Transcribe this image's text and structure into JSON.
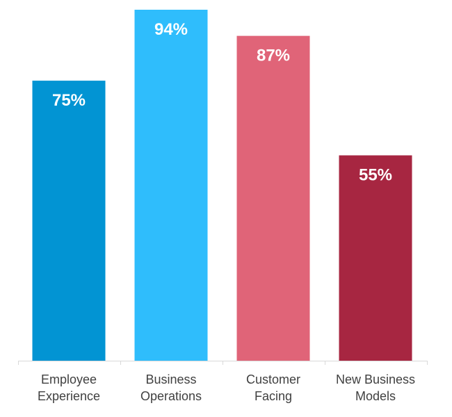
{
  "chart_data": {
    "type": "bar",
    "categories": [
      [
        "Employee",
        "Experience"
      ],
      [
        "Business",
        "Operations"
      ],
      [
        "Customer",
        "Facing"
      ],
      [
        "New Business",
        "Models"
      ]
    ],
    "values": [
      75,
      94,
      87,
      55
    ],
    "value_labels": [
      "75%",
      "94%",
      "87%",
      "55%"
    ],
    "colors": [
      "#0294d3",
      "#2fbdfc",
      "#e06478",
      "#a72641"
    ],
    "title": "",
    "xlabel": "",
    "ylabel": "",
    "ylim": [
      0,
      94
    ],
    "grid": false,
    "legend": "none"
  }
}
